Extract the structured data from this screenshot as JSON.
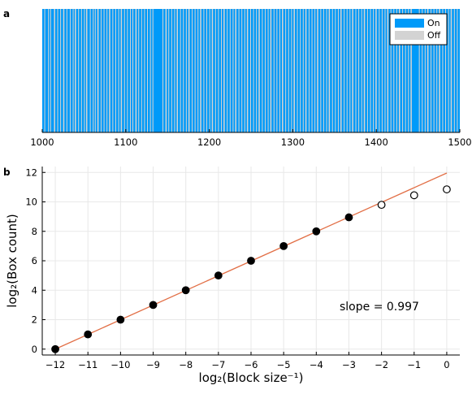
{
  "colors": {
    "on": "#009af9",
    "off": "#d3d3d3",
    "fit": "#e26f46",
    "grid": "#e8e8e8"
  },
  "chart_data": [
    {
      "panel": "a",
      "type": "bar",
      "x": [
        1000,
        1500
      ],
      "xlim": [
        1000,
        1500
      ],
      "xticks": [
        "1000",
        "1100",
        "1200",
        "1300",
        "1400",
        "1500"
      ],
      "legend": [
        "On",
        "Off"
      ],
      "legend_position": "top-right",
      "on_fraction": 0.75,
      "off_ranges": [
        [
          1002.5,
          1003.5
        ],
        [
          1007,
          1008
        ],
        [
          1009.5,
          1010.5
        ],
        [
          1014,
          1015.5
        ],
        [
          1018,
          1019
        ],
        [
          1021.5,
          1022.5
        ],
        [
          1025,
          1026.5
        ],
        [
          1029,
          1030
        ],
        [
          1033,
          1034
        ],
        [
          1036.5,
          1037.5
        ],
        [
          1039,
          1040.5
        ],
        [
          1043,
          1044
        ],
        [
          1046.5,
          1047.5
        ],
        [
          1050,
          1051
        ],
        [
          1052.5,
          1054
        ],
        [
          1057,
          1058
        ],
        [
          1060.5,
          1061.5
        ],
        [
          1063,
          1064
        ],
        [
          1066,
          1067.5
        ],
        [
          1070,
          1071
        ],
        [
          1073.5,
          1074.5
        ],
        [
          1077,
          1078
        ],
        [
          1080,
          1081.5
        ],
        [
          1084,
          1085
        ],
        [
          1087.5,
          1088.5
        ],
        [
          1091,
          1092
        ],
        [
          1094,
          1095.5
        ],
        [
          1098,
          1099
        ],
        [
          1101.5,
          1102.5
        ],
        [
          1105,
          1106
        ],
        [
          1108,
          1109
        ],
        [
          1111.5,
          1113
        ],
        [
          1115,
          1116
        ],
        [
          1118.5,
          1119.5
        ],
        [
          1122,
          1123
        ],
        [
          1125.5,
          1126.5
        ],
        [
          1129,
          1130
        ],
        [
          1132,
          1133
        ],
        [
          1144,
          1145
        ],
        [
          1147.5,
          1149
        ],
        [
          1151,
          1152
        ],
        [
          1154.5,
          1155.5
        ],
        [
          1158,
          1159
        ],
        [
          1161,
          1162.5
        ],
        [
          1165,
          1166
        ],
        [
          1168.5,
          1169.5
        ],
        [
          1172,
          1173
        ],
        [
          1175,
          1176.5
        ],
        [
          1179,
          1180
        ],
        [
          1182.5,
          1183.5
        ],
        [
          1186,
          1187
        ],
        [
          1189,
          1190.5
        ],
        [
          1193,
          1194
        ],
        [
          1196.5,
          1197.5
        ],
        [
          1200,
          1201
        ],
        [
          1203,
          1204.5
        ],
        [
          1207,
          1208
        ],
        [
          1210.5,
          1211.5
        ],
        [
          1214,
          1215
        ],
        [
          1217,
          1218.5
        ],
        [
          1221,
          1222
        ],
        [
          1224.5,
          1225.5
        ],
        [
          1228,
          1229
        ],
        [
          1231,
          1232.5
        ],
        [
          1235,
          1236
        ],
        [
          1238.5,
          1239.5
        ],
        [
          1242,
          1243
        ],
        [
          1245,
          1246.5
        ],
        [
          1249,
          1250
        ],
        [
          1252.5,
          1253.5
        ],
        [
          1256,
          1257
        ],
        [
          1259,
          1260.5
        ],
        [
          1263,
          1264
        ],
        [
          1266.5,
          1267.5
        ],
        [
          1270,
          1271
        ],
        [
          1273,
          1274.5
        ],
        [
          1277,
          1278
        ],
        [
          1280.5,
          1281.5
        ],
        [
          1284,
          1285
        ],
        [
          1287,
          1288.5
        ],
        [
          1291,
          1292
        ],
        [
          1294.5,
          1295.5
        ],
        [
          1298,
          1299
        ],
        [
          1301,
          1302.5
        ],
        [
          1305,
          1306
        ],
        [
          1308.5,
          1309.5
        ],
        [
          1312,
          1313
        ],
        [
          1315,
          1316.5
        ],
        [
          1319,
          1320
        ],
        [
          1322.5,
          1323.5
        ],
        [
          1326,
          1327
        ],
        [
          1329,
          1330.5
        ],
        [
          1333,
          1334
        ],
        [
          1336.5,
          1337.5
        ],
        [
          1340,
          1341
        ],
        [
          1343,
          1344.5
        ],
        [
          1347,
          1348
        ],
        [
          1350.5,
          1351.5
        ],
        [
          1354,
          1355
        ],
        [
          1357,
          1358.5
        ],
        [
          1361,
          1362
        ],
        [
          1364.5,
          1365.5
        ],
        [
          1368,
          1369
        ],
        [
          1371,
          1372.5
        ],
        [
          1375,
          1376
        ],
        [
          1378.5,
          1379.5
        ],
        [
          1382,
          1383
        ],
        [
          1385,
          1386.5
        ],
        [
          1389,
          1390
        ],
        [
          1392.5,
          1393.5
        ],
        [
          1396,
          1397
        ],
        [
          1399,
          1400.5
        ],
        [
          1403,
          1404
        ],
        [
          1406.5,
          1407.5
        ],
        [
          1410,
          1411
        ],
        [
          1413,
          1414.5
        ],
        [
          1417,
          1418
        ],
        [
          1420.5,
          1421.5
        ],
        [
          1424,
          1425
        ],
        [
          1427,
          1428.5
        ],
        [
          1431,
          1432
        ],
        [
          1434.5,
          1435.5
        ],
        [
          1438,
          1439
        ],
        [
          1441,
          1442.5
        ],
        [
          1451,
          1452
        ],
        [
          1454.5,
          1455.5
        ],
        [
          1458,
          1459
        ],
        [
          1461,
          1462.5
        ],
        [
          1465,
          1466
        ],
        [
          1468.5,
          1469.5
        ],
        [
          1472,
          1473
        ],
        [
          1475,
          1476.5
        ],
        [
          1479,
          1480
        ],
        [
          1482.5,
          1483.5
        ],
        [
          1486,
          1487
        ],
        [
          1489,
          1490.5
        ],
        [
          1493,
          1494
        ],
        [
          1496.5,
          1497.5
        ]
      ]
    },
    {
      "panel": "b",
      "type": "scatter",
      "xlabel": "log₂(Block size⁻¹)",
      "ylabel": "log₂(Box count)",
      "xlim": [
        -12.4,
        0.4
      ],
      "ylim": [
        -0.4,
        12.4
      ],
      "xticks": [
        -12,
        -11,
        -10,
        -9,
        -8,
        -7,
        -6,
        -5,
        -4,
        -3,
        -2,
        -1,
        0
      ],
      "yticks": [
        0,
        2,
        4,
        6,
        8,
        10,
        12
      ],
      "grid": true,
      "series": [
        {
          "marker": "filled",
          "x": [
            -12,
            -11,
            -10,
            -9,
            -8,
            -7,
            -6,
            -5,
            -4,
            -3
          ],
          "y": [
            0,
            1,
            2,
            3,
            4,
            5,
            6,
            7,
            8,
            8.95
          ]
        },
        {
          "marker": "open",
          "x": [
            -2,
            -1,
            0
          ],
          "y": [
            9.8,
            10.45,
            10.85
          ]
        }
      ],
      "fit_line": {
        "x": [
          -12,
          0
        ],
        "y": [
          0,
          11.96
        ]
      },
      "annotation": "slope = 0.997"
    }
  ]
}
